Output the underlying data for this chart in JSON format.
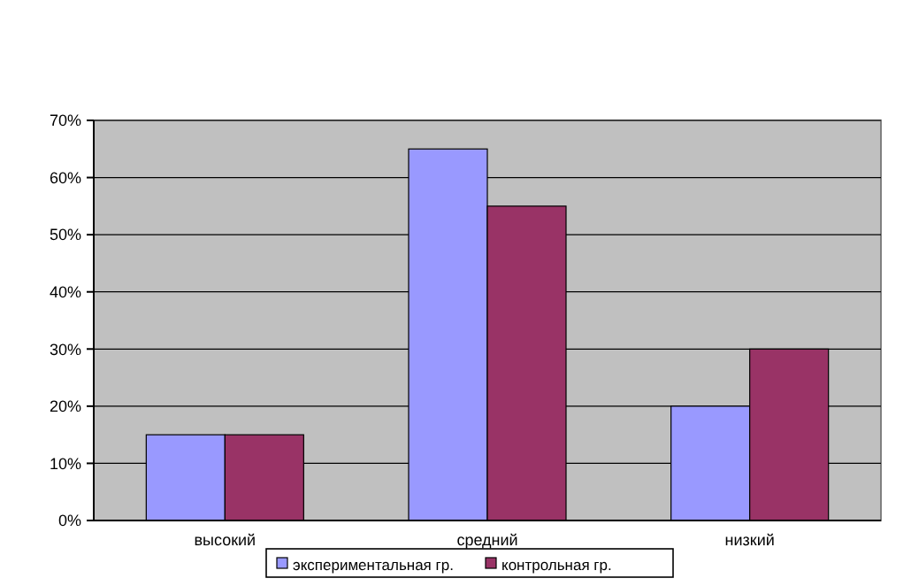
{
  "chart_data": {
    "type": "bar",
    "categories": [
      "высокий",
      "средний",
      "низкий"
    ],
    "series": [
      {
        "name": "экспериментальная гр.",
        "color": "#9999ff",
        "values": [
          15,
          65,
          20
        ]
      },
      {
        "name": "контрольная гр.",
        "color": "#993366",
        "values": [
          15,
          55,
          30
        ]
      }
    ],
    "ylim": [
      0,
      70
    ],
    "yticks": [
      {
        "value": 0,
        "label": "0%"
      },
      {
        "value": 10,
        "label": "10%"
      },
      {
        "value": 20,
        "label": "20%"
      },
      {
        "value": 30,
        "label": "30%"
      },
      {
        "value": 40,
        "label": "40%"
      },
      {
        "value": 50,
        "label": "50%"
      },
      {
        "value": 60,
        "label": "60%"
      },
      {
        "value": 70,
        "label": "70%"
      }
    ],
    "grid": "y",
    "legend": "bottom"
  }
}
